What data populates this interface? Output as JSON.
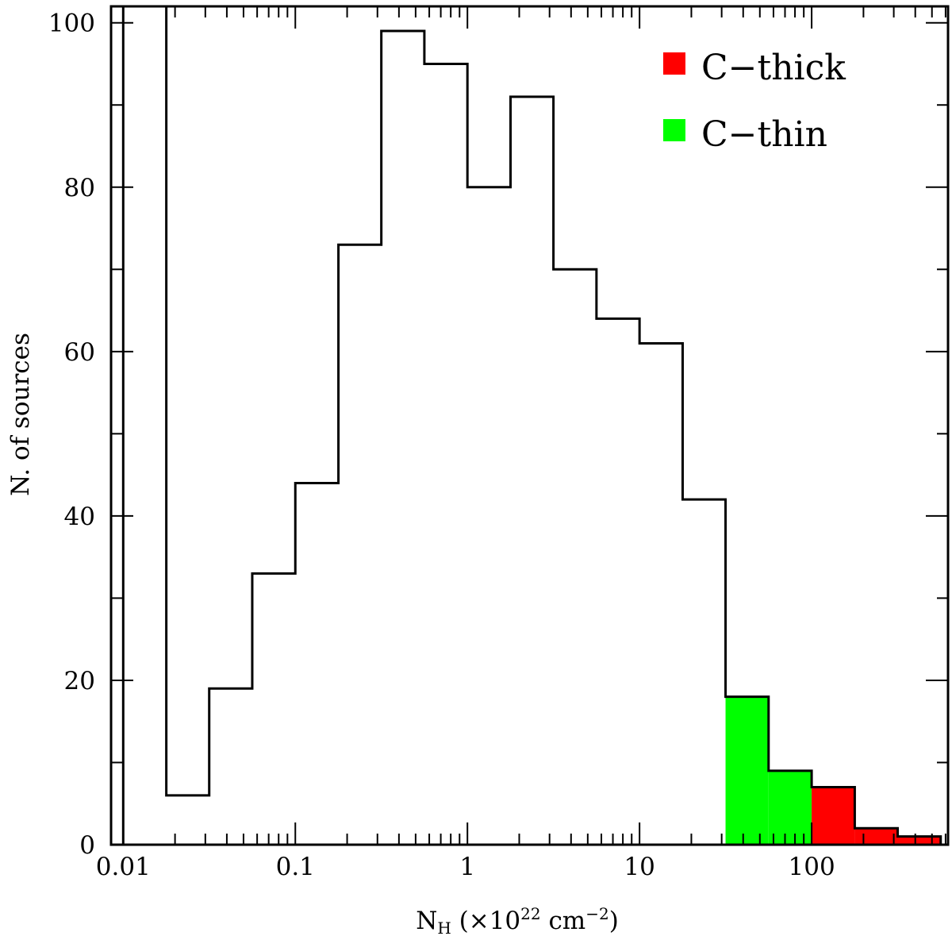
{
  "chart_data": {
    "type": "histogram",
    "x_scale": "log",
    "xlim": [
      0.0085,
      620
    ],
    "ylim": [
      0,
      102
    ],
    "xlabel_main": "N",
    "xlabel_sub": "H",
    "xlabel_rest_pre": " (×10",
    "xlabel_exp": "22",
    "xlabel_rest_mid": " cm",
    "xlabel_exp2": "−2",
    "xlabel_rest_post": ")",
    "ylabel": "N. of sources",
    "x_ticks": [
      {
        "value": 0.01,
        "label": "0.01"
      },
      {
        "value": 0.1,
        "label": "0.1"
      },
      {
        "value": 1,
        "label": "1"
      },
      {
        "value": 10,
        "label": "10"
      },
      {
        "value": 100,
        "label": "100"
      }
    ],
    "y_ticks": [
      {
        "value": 0,
        "label": "0"
      },
      {
        "value": 20,
        "label": "20"
      },
      {
        "value": 40,
        "label": "40"
      },
      {
        "value": 60,
        "label": "60"
      },
      {
        "value": 80,
        "label": "80"
      },
      {
        "value": 100,
        "label": "100"
      }
    ],
    "y_minor_step": 10,
    "bin_edges": [
      0.01,
      0.0178,
      0.0316,
      0.0562,
      0.1,
      0.178,
      0.316,
      0.562,
      1,
      1.78,
      3.16,
      5.62,
      10,
      17.8,
      31.6,
      56.2,
      100,
      178,
      316,
      562
    ],
    "counts": [
      102,
      6,
      19,
      33,
      44,
      73,
      99,
      95,
      80,
      91,
      70,
      64,
      61,
      42,
      18,
      9,
      7,
      2,
      1
    ],
    "filled_bins": [
      {
        "x0": 31.6,
        "x1": 56.2,
        "count": 18,
        "class": "C-thin"
      },
      {
        "x0": 56.2,
        "x1": 100,
        "count": 9,
        "class": "C-thin"
      },
      {
        "x0": 100,
        "x1": 178,
        "count": 7,
        "class": "C-thick"
      },
      {
        "x0": 178,
        "x1": 316,
        "count": 2,
        "class": "C-thick"
      },
      {
        "x0": 316,
        "x1": 562,
        "count": 1,
        "class": "C-thick"
      }
    ],
    "legend": [
      {
        "label": "C−thick",
        "color": "#ff0000"
      },
      {
        "label": "C−thin",
        "color": "#00ff00"
      }
    ],
    "legend_position": "top-right",
    "grid": false
  }
}
